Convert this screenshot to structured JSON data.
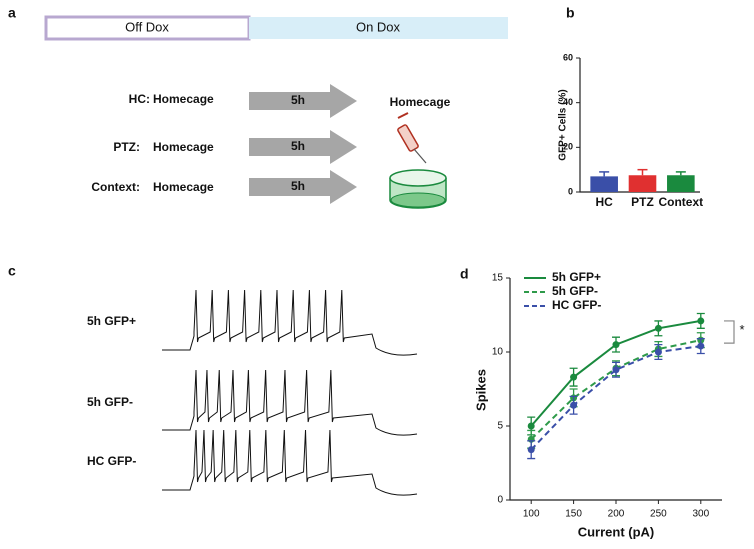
{
  "panels": {
    "a": "a",
    "b": "b",
    "c": "c",
    "d": "d"
  },
  "timeline": {
    "off": "Off Dox",
    "on": "On Dox"
  },
  "protocol": [
    {
      "group": "HC:",
      "before": "Homecage",
      "interval": "5h",
      "after": "Homecage"
    },
    {
      "group": "PTZ:",
      "before": "Homecage",
      "interval": "5h"
    },
    {
      "group": "Context:",
      "before": "Homecage",
      "interval": "5h"
    }
  ],
  "traces": [
    "5h GFP+",
    "5h GFP-",
    "HC GFP-"
  ],
  "chart_data": [
    {
      "type": "bar",
      "ylabel": "GFP+ Cells (%)",
      "categories": [
        "HC",
        "PTZ",
        "Context"
      ],
      "values": [
        7,
        7.5,
        7.5
      ],
      "errors": [
        2,
        2.5,
        1.5
      ],
      "colors": [
        "#3a4fa8",
        "#e03030",
        "#1a8a3e"
      ],
      "ylim": [
        0,
        60
      ],
      "yticks": [
        0,
        20,
        40,
        60
      ]
    },
    {
      "type": "line",
      "xlabel": "Current (pA)",
      "ylabel": "Spikes",
      "annotation": "*",
      "x": [
        100,
        150,
        200,
        250,
        300
      ],
      "xlim": [
        75,
        325
      ],
      "xticks": [
        100,
        150,
        200,
        250,
        300
      ],
      "ylim": [
        0,
        15
      ],
      "yticks": [
        0,
        5,
        10,
        15
      ],
      "legend": "upper left",
      "series": [
        {
          "name": "5h GFP+",
          "color": "#1a8a3e",
          "dash": false,
          "values": [
            5.0,
            8.3,
            10.5,
            11.6,
            12.1
          ],
          "errors": [
            0.6,
            0.6,
            0.5,
            0.5,
            0.5
          ]
        },
        {
          "name": "5h GFP-",
          "color": "#2e9a4a",
          "dash": true,
          "values": [
            4.1,
            6.9,
            8.9,
            10.2,
            10.8
          ],
          "errors": [
            0.6,
            0.6,
            0.5,
            0.5,
            0.5
          ]
        },
        {
          "name": "HC GFP-",
          "color": "#3a4fa8",
          "dash": true,
          "values": [
            3.4,
            6.4,
            8.8,
            10.0,
            10.4
          ],
          "errors": [
            0.6,
            0.6,
            0.5,
            0.5,
            0.5
          ]
        }
      ]
    }
  ]
}
